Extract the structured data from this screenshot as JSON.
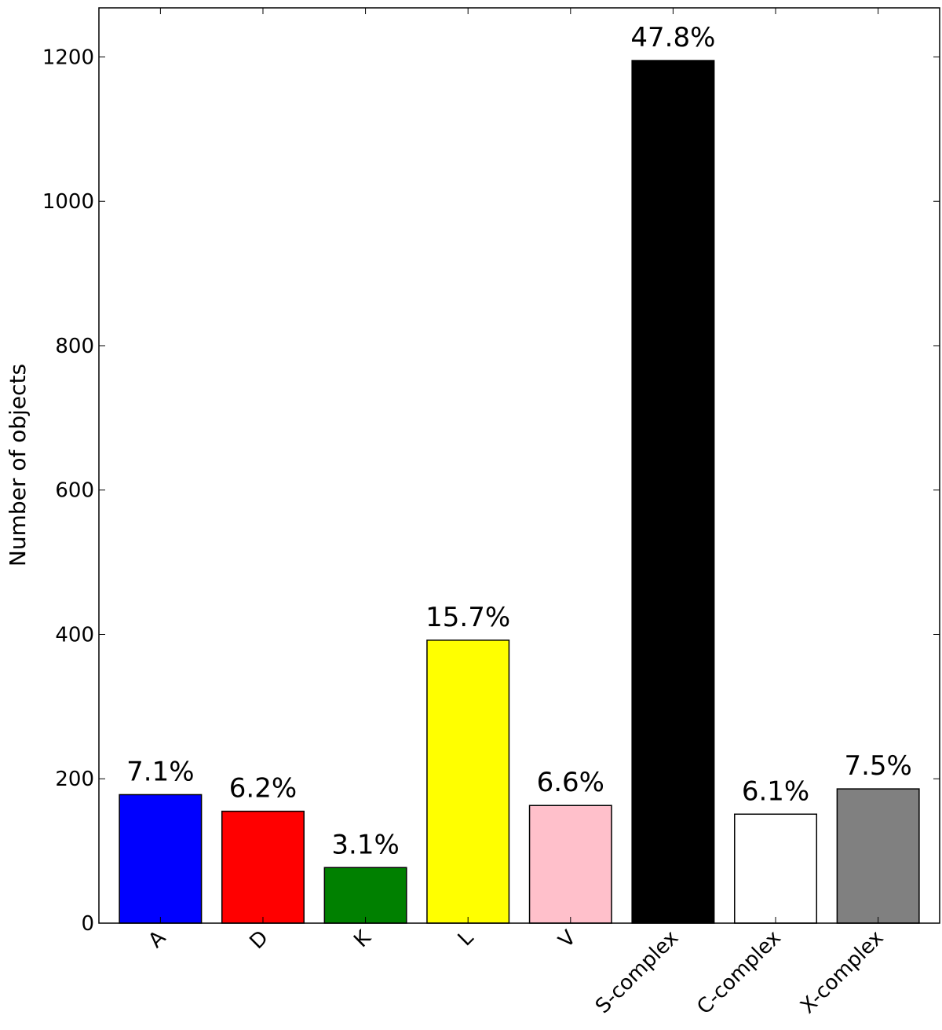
{
  "chart_data": {
    "type": "bar",
    "y_label": "Number of objects",
    "categories": [
      "A",
      "D",
      "K",
      "L",
      "V",
      "S-complex",
      "C-complex",
      "X-complex"
    ],
    "values": [
      178,
      155,
      77,
      392,
      163,
      1195,
      151,
      186
    ],
    "annotations": [
      "7.1%",
      "6.2%",
      "3.1%",
      "15.7%",
      "6.6%",
      "47.8%",
      "6.1%",
      "7.5%"
    ],
    "colors": [
      "#0000ff",
      "#ff0000",
      "#008000",
      "#ffff00",
      "#ffc0cb",
      "#000000",
      "#ffffff",
      "#808080"
    ],
    "ylim": [
      0,
      1268
    ],
    "yticks": [
      0,
      200,
      400,
      600,
      800,
      1000,
      1200
    ]
  }
}
